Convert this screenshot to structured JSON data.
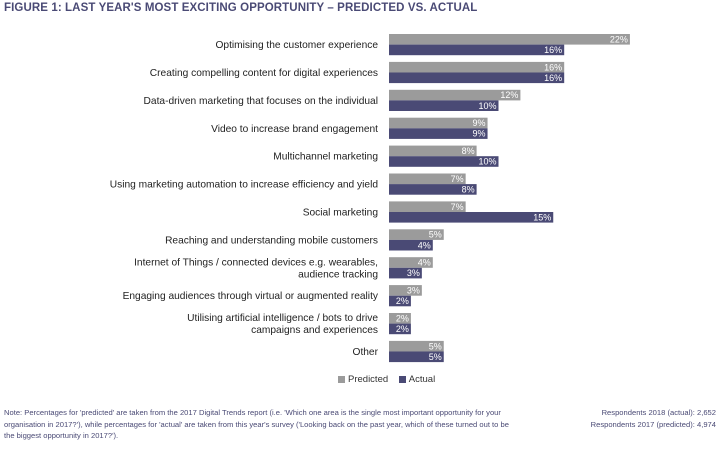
{
  "title": "FIGURE 1: LAST YEAR'S MOST EXCITING OPPORTUNITY – PREDICTED VS. ACTUAL",
  "colors": {
    "predicted": "#9b9b9b",
    "actual": "#4a4a75",
    "title": "#4a4a75"
  },
  "legend": {
    "predicted": "Predicted",
    "actual": "Actual"
  },
  "chart_data": {
    "type": "bar",
    "orientation": "horizontal",
    "categories": [
      [
        "Optimising the customer experience"
      ],
      [
        "Creating compelling content for digital experiences"
      ],
      [
        "Data-driven marketing that focuses on the individual"
      ],
      [
        "Video to increase brand engagement"
      ],
      [
        "Multichannel marketing"
      ],
      [
        "Using marketing automation to increase efficiency and yield"
      ],
      [
        "Social marketing"
      ],
      [
        "Reaching and understanding mobile customers"
      ],
      [
        "Internet of Things / connected devices e.g. wearables,",
        "audience tracking"
      ],
      [
        "Engaging audiences through virtual or augmented reality"
      ],
      [
        "Utilising artificial intelligence / bots to drive",
        "campaigns and experiences"
      ],
      [
        "Other"
      ]
    ],
    "series": [
      {
        "name": "Predicted",
        "values": [
          22,
          16,
          12,
          9,
          8,
          7,
          7,
          5,
          4,
          3,
          2,
          5
        ]
      },
      {
        "name": "Actual",
        "values": [
          16,
          16,
          10,
          9,
          10,
          8,
          15,
          4,
          3,
          2,
          2,
          5
        ]
      }
    ],
    "unit": "%",
    "legend_position": "bottom"
  },
  "footnote": "Note: Percentages for 'predicted' are taken from the 2017 Digital Trends report (i.e. 'Which one area is the single most important opportunity for your organisation in 2017?'), while percentages for 'actual' are taken from this year's survey ('Looking back on the past year, which of these turned out to be the biggest opportunity in 2017?').",
  "respondents": [
    "Respondents 2018 (actual): 2,652",
    "Respondents 2017 (predicted): 4,974"
  ]
}
